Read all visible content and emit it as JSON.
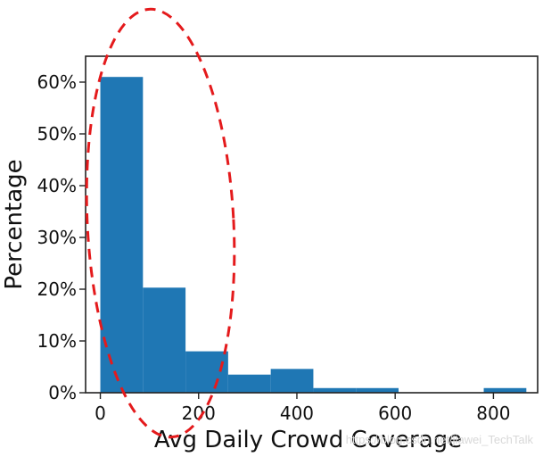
{
  "chart_data": {
    "type": "bar",
    "title": "",
    "xlabel": "Avg Daily Crowd Coverage",
    "ylabel": "Percentage",
    "xlim": [
      -30,
      890
    ],
    "ylim": [
      0,
      0.65
    ],
    "bin_edges": [
      0,
      86.7,
      173.4,
      260.1,
      346.8,
      433.5,
      520.2,
      606.9,
      693.6,
      780.3,
      867
    ],
    "values": [
      0.61,
      0.203,
      0.08,
      0.035,
      0.046,
      0.009,
      0.009,
      0.0,
      0.0,
      0.009
    ],
    "x_ticks": [
      0,
      200,
      400,
      600,
      800
    ],
    "x_tick_labels": [
      "0",
      "200",
      "400",
      "600",
      "800"
    ],
    "y_ticks": [
      0,
      0.1,
      0.2,
      0.3,
      0.4,
      0.5,
      0.6
    ],
    "y_tick_labels": [
      "0%",
      "10%",
      "20%",
      "30%",
      "40%",
      "50%",
      "60%"
    ],
    "bar_color": "#1f77b4",
    "grid": false,
    "legend": "none",
    "annotation": {
      "shape": "dashed-ellipse",
      "color": "#e41a1c",
      "encloses": "first three bins"
    }
  },
  "watermark": "https://blog.csdn.net/jiawei_TechTalk"
}
